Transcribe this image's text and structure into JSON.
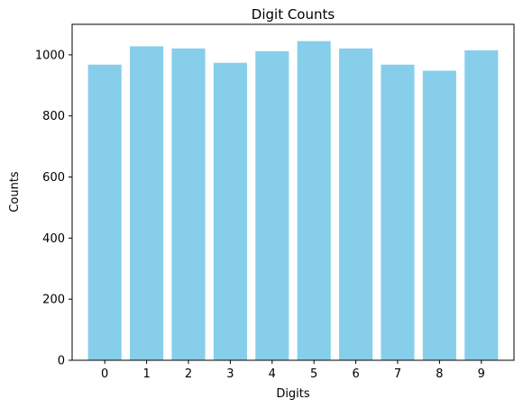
{
  "chart_data": {
    "type": "bar",
    "title": "Digit Counts",
    "xlabel": "Digits",
    "ylabel": "Counts",
    "categories": [
      "0",
      "1",
      "2",
      "3",
      "4",
      "5",
      "6",
      "7",
      "8",
      "9"
    ],
    "values": [
      968,
      1028,
      1021,
      974,
      1012,
      1045,
      1021,
      968,
      948,
      1015
    ],
    "ylim": [
      0,
      1100
    ],
    "yticks": [
      "0",
      "200",
      "400",
      "600",
      "800",
      "1000"
    ],
    "bar_color": "#87ceeb",
    "grid": false,
    "legend": "none"
  }
}
